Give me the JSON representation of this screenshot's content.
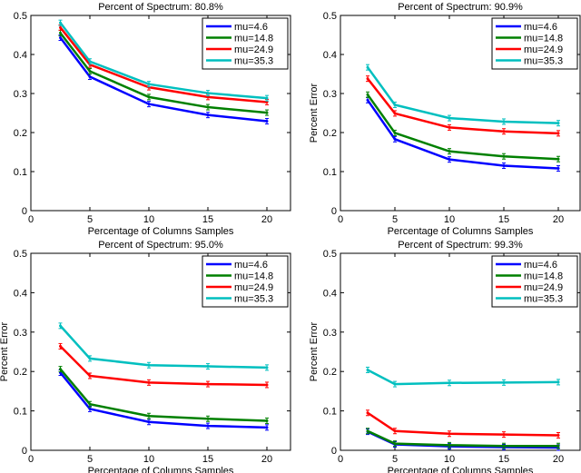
{
  "chart_data": [
    {
      "type": "line",
      "title": "Percent of Spectrum: 80.8%",
      "xlabel": "Percentage of Columns Samples",
      "ylabel": "",
      "xlim": [
        0,
        22
      ],
      "ylim": [
        0,
        0.5
      ],
      "xticks": [
        "0",
        "5",
        "10",
        "15",
        "20"
      ],
      "yticks": [
        "0",
        "0.1",
        "0.2",
        "0.3",
        "0.4",
        "0.5"
      ],
      "grid": false,
      "legend_position": "top-right",
      "x": [
        2.5,
        5,
        10,
        15,
        20
      ],
      "series": [
        {
          "name": "mu=4.6",
          "color": "#0000ff",
          "values": [
            0.443,
            0.343,
            0.273,
            0.245,
            0.229
          ]
        },
        {
          "name": "mu=14.8",
          "color": "#008000",
          "values": [
            0.455,
            0.357,
            0.291,
            0.265,
            0.251
          ]
        },
        {
          "name": "mu=24.9",
          "color": "#ff0000",
          "values": [
            0.469,
            0.374,
            0.316,
            0.291,
            0.278
          ]
        },
        {
          "name": "mu=35.3",
          "color": "#00bfbf",
          "values": [
            0.481,
            0.382,
            0.324,
            0.301,
            0.288
          ]
        }
      ]
    },
    {
      "type": "line",
      "title": "Percent of Spectrum: 90.9%",
      "xlabel": "Percentage of Columns Samples",
      "ylabel": "Percent Error",
      "xlim": [
        0,
        22
      ],
      "ylim": [
        0,
        0.5
      ],
      "xticks": [
        "0",
        "5",
        "10",
        "15",
        "20"
      ],
      "yticks": [
        "0",
        "0.1",
        "0.2",
        "0.3",
        "0.4",
        "0.5"
      ],
      "grid": false,
      "legend_position": "top-right",
      "x": [
        2.5,
        5,
        10,
        15,
        20
      ],
      "series": [
        {
          "name": "mu=4.6",
          "color": "#0000ff",
          "values": [
            0.283,
            0.183,
            0.131,
            0.115,
            0.108
          ]
        },
        {
          "name": "mu=14.8",
          "color": "#008000",
          "values": [
            0.297,
            0.199,
            0.152,
            0.139,
            0.132
          ]
        },
        {
          "name": "mu=24.9",
          "color": "#ff0000",
          "values": [
            0.338,
            0.249,
            0.213,
            0.203,
            0.198
          ]
        },
        {
          "name": "mu=35.3",
          "color": "#00bfbf",
          "values": [
            0.367,
            0.271,
            0.237,
            0.228,
            0.224
          ]
        }
      ]
    },
    {
      "type": "line",
      "title": "Percent of Spectrum: 95.0%",
      "xlabel": "Percentage of Columns Samples",
      "ylabel": "Percent Error",
      "xlim": [
        0,
        22
      ],
      "ylim": [
        0,
        0.5
      ],
      "xticks": [
        "0",
        "5",
        "10",
        "15",
        "20"
      ],
      "yticks": [
        "0",
        "0.1",
        "0.2",
        "0.3",
        "0.4",
        "0.5"
      ],
      "grid": false,
      "legend_position": "top-right",
      "x": [
        2.5,
        5,
        10,
        15,
        20
      ],
      "series": [
        {
          "name": "mu=4.6",
          "color": "#0000ff",
          "values": [
            0.197,
            0.105,
            0.072,
            0.062,
            0.058
          ]
        },
        {
          "name": "mu=14.8",
          "color": "#008000",
          "values": [
            0.206,
            0.117,
            0.087,
            0.08,
            0.075
          ]
        },
        {
          "name": "mu=24.9",
          "color": "#ff0000",
          "values": [
            0.264,
            0.189,
            0.172,
            0.168,
            0.166
          ]
        },
        {
          "name": "mu=35.3",
          "color": "#00bfbf",
          "values": [
            0.316,
            0.233,
            0.216,
            0.213,
            0.21
          ]
        }
      ]
    },
    {
      "type": "line",
      "title": "Percent of Spectrum: 99.3%",
      "xlabel": "Percentage of Columns Samples",
      "ylabel": "Percent Error",
      "xlim": [
        0,
        22
      ],
      "ylim": [
        0,
        0.5
      ],
      "xticks": [
        "0",
        "5",
        "10",
        "15",
        "20"
      ],
      "yticks": [
        "0",
        "0.1",
        "0.2",
        "0.3",
        "0.4",
        "0.5"
      ],
      "grid": false,
      "legend_position": "top-right",
      "x": [
        2.5,
        5,
        10,
        15,
        20
      ],
      "series": [
        {
          "name": "mu=4.6",
          "color": "#0000ff",
          "values": [
            0.047,
            0.015,
            0.01,
            0.008,
            0.007
          ]
        },
        {
          "name": "mu=14.8",
          "color": "#008000",
          "values": [
            0.049,
            0.017,
            0.013,
            0.011,
            0.011
          ]
        },
        {
          "name": "mu=24.9",
          "color": "#ff0000",
          "values": [
            0.095,
            0.049,
            0.042,
            0.04,
            0.038
          ]
        },
        {
          "name": "mu=35.3",
          "color": "#00bfbf",
          "values": [
            0.204,
            0.168,
            0.171,
            0.172,
            0.173
          ]
        }
      ]
    }
  ]
}
